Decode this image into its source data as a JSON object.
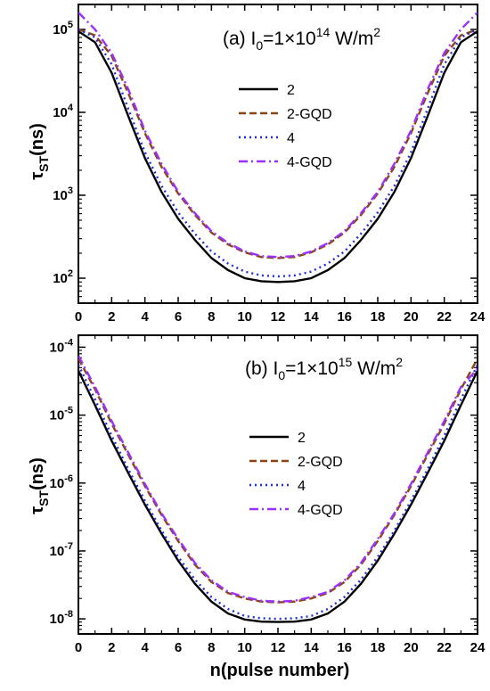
{
  "colors": {
    "s2": "#000000",
    "s2gqd": "#8B4513",
    "s4": "#1f2fd6",
    "s4gqd": "#9b30ff"
  },
  "xlabel": "n(pulse number)",
  "chart_data": [
    {
      "type": "line",
      "panel": "a",
      "title_prefix": "(a) I",
      "title_sub": "0",
      "title_mid": "=1×10",
      "title_sup": "14",
      "title_units": " W/m",
      "title_units_sup": "2",
      "ylabel_main": "τ",
      "ylabel_sub": "ST",
      "ylabel_units": "(ns)",
      "xlabel": "",
      "log_y": true,
      "xlim": [
        0,
        24
      ],
      "ylim": [
        50,
        200000
      ],
      "x_ticks": [
        0,
        2,
        4,
        6,
        8,
        10,
        12,
        14,
        16,
        18,
        20,
        22,
        24
      ],
      "y_ticks": [
        100,
        1000,
        10000,
        100000
      ],
      "y_tick_base": "10",
      "y_tick_exps": [
        "2",
        "3",
        "4",
        "5"
      ],
      "legend_position": "right-middle",
      "x": [
        0,
        1,
        2,
        3,
        4,
        5,
        6,
        7,
        8,
        9,
        10,
        11,
        12,
        13,
        14,
        15,
        16,
        17,
        18,
        19,
        20,
        21,
        22,
        23,
        24
      ],
      "series": [
        {
          "name": "2",
          "color_key": "s2",
          "dash": "",
          "values": [
            95000,
            70000,
            30000,
            9000,
            2800,
            1100,
            520,
            290,
            175,
            125,
            100,
            92,
            90,
            92,
            100,
            125,
            175,
            290,
            520,
            1100,
            2800,
            9000,
            30000,
            70000,
            95000
          ]
        },
        {
          "name": "2-GQD",
          "color_key": "s2gqd",
          "dash": "8,4",
          "values": [
            100000,
            85000,
            48000,
            17000,
            5600,
            2200,
            1050,
            580,
            355,
            255,
            205,
            180,
            175,
            180,
            205,
            255,
            355,
            580,
            1050,
            2200,
            5600,
            17000,
            48000,
            85000,
            100000
          ]
        },
        {
          "name": "4",
          "color_key": "s4",
          "dash": "2,4",
          "values": [
            100000,
            80000,
            38000,
            11000,
            3300,
            1300,
            620,
            345,
            210,
            150,
            120,
            108,
            105,
            108,
            120,
            150,
            210,
            345,
            620,
            1300,
            3300,
            11000,
            38000,
            80000,
            100000
          ]
        },
        {
          "name": "4-GQD",
          "color_key": "s4gqd",
          "dash": "10,4,2,4",
          "values": [
            160000,
            100000,
            52000,
            19000,
            6000,
            2400,
            1100,
            610,
            370,
            265,
            210,
            185,
            180,
            185,
            210,
            265,
            370,
            610,
            1100,
            2400,
            6000,
            19000,
            52000,
            100000,
            160000
          ]
        }
      ]
    },
    {
      "type": "line",
      "panel": "b",
      "title_prefix": "(b) I",
      "title_sub": "0",
      "title_mid": "=1×10",
      "title_sup": "15",
      "title_units": " W/m",
      "title_units_sup": "2",
      "ylabel_main": "τ",
      "ylabel_sub": "ST",
      "ylabel_units": "(ns)",
      "xlabel": "n(pulse number)",
      "log_y": true,
      "xlim": [
        0,
        24
      ],
      "ylim": [
        6e-09,
        0.00015
      ],
      "x_ticks": [
        0,
        2,
        4,
        6,
        8,
        10,
        12,
        14,
        16,
        18,
        20,
        22,
        24
      ],
      "y_ticks": [
        1e-08,
        1e-07,
        1e-06,
        1e-05,
        0.0001
      ],
      "y_tick_base": "10",
      "y_tick_exps": [
        "-8",
        "-7",
        "-6",
        "-5",
        "-4"
      ],
      "legend_position": "right-middle",
      "x": [
        0,
        1,
        2,
        3,
        4,
        5,
        6,
        7,
        8,
        9,
        10,
        11,
        12,
        13,
        14,
        15,
        16,
        17,
        18,
        19,
        20,
        21,
        22,
        23,
        24
      ],
      "series": [
        {
          "name": "2",
          "color_key": "s2",
          "dash": "",
          "values": [
            4.5e-05,
            1.4e-05,
            4.2e-06,
            1.4e-06,
            4.8e-07,
            1.8e-07,
            7.2e-08,
            3.3e-08,
            1.8e-08,
            1.2e-08,
            9.8e-09,
            9.1e-09,
            9e-09,
            9.1e-09,
            9.8e-09,
            1.2e-08,
            1.8e-08,
            3.3e-08,
            7.2e-08,
            1.8e-07,
            4.8e-07,
            1.4e-06,
            4.2e-06,
            1.4e-05,
            4.5e-05
          ]
        },
        {
          "name": "2-GQD",
          "color_key": "s2gqd",
          "dash": "8,4",
          "values": [
            6.8e-05,
            2.4e-05,
            7.5e-06,
            2.6e-06,
            9e-07,
            3.4e-07,
            1.4e-07,
            6.3e-08,
            3.5e-08,
            2.4e-08,
            2e-08,
            1.8e-08,
            1.75e-08,
            1.8e-08,
            2e-08,
            2.4e-08,
            3.5e-08,
            6.3e-08,
            1.4e-07,
            3.4e-07,
            9e-07,
            2.6e-06,
            7.5e-06,
            2.4e-05,
            6.8e-05
          ]
        },
        {
          "name": "4",
          "color_key": "s4",
          "dash": "2,4",
          "values": [
            5.5e-05,
            1.7e-05,
            5e-06,
            1.6e-06,
            5.5e-07,
            2e-07,
            8.2e-08,
            3.8e-08,
            2.1e-08,
            1.4e-08,
            1.1e-08,
            1.02e-08,
            1e-08,
            1.02e-08,
            1.1e-08,
            1.4e-08,
            2.1e-08,
            3.8e-08,
            8.2e-08,
            2e-07,
            5.5e-07,
            1.6e-06,
            5e-06,
            1.7e-05,
            5.5e-05
          ]
        },
        {
          "name": "4-GQD",
          "color_key": "s4gqd",
          "dash": "10,4,2,4",
          "values": [
            7.5e-05,
            2.6e-05,
            8.2e-06,
            2.8e-06,
            9.7e-07,
            3.6e-07,
            1.5e-07,
            6.7e-08,
            3.7e-08,
            2.5e-08,
            2.1e-08,
            1.85e-08,
            1.8e-08,
            1.85e-08,
            2.1e-08,
            2.5e-08,
            3.7e-08,
            6.7e-08,
            1.5e-07,
            3.6e-07,
            9.7e-07,
            2.8e-06,
            8.2e-06,
            2.6e-05,
            4.8e-05
          ]
        }
      ]
    }
  ]
}
